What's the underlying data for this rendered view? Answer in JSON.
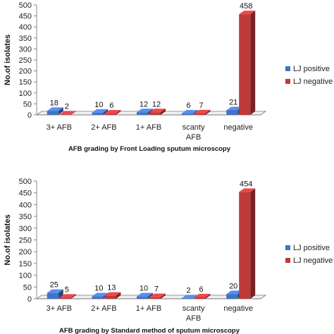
{
  "chart_data": [
    {
      "type": "bar",
      "title": "AFB grading by Front Loading sputum microscopy",
      "ylabel": "No.of isolates",
      "xlabel": "",
      "ylim": [
        0,
        500
      ],
      "yticks": [
        0,
        50,
        100,
        150,
        200,
        250,
        300,
        350,
        400,
        450,
        500
      ],
      "categories": [
        "3+ AFB",
        "2+ AFB",
        "1+ AFB",
        "scanty AFB",
        "negative"
      ],
      "series": [
        {
          "name": "LJ positive",
          "values": [
            18,
            10,
            12,
            6,
            21
          ],
          "color": "#4472c4"
        },
        {
          "name": "LJ negative",
          "values": [
            2,
            6,
            12,
            7,
            458
          ],
          "color": "#c0393b"
        }
      ],
      "legend_position": "right",
      "grid": false
    },
    {
      "type": "bar",
      "title": "AFB grading by Standard method of sputum microscopy",
      "ylabel": "No.of isolates",
      "xlabel": "",
      "ylim": [
        0,
        500
      ],
      "yticks": [
        0,
        50,
        100,
        150,
        200,
        250,
        300,
        350,
        400,
        450,
        500
      ],
      "categories": [
        "3+ AFB",
        "2+ AFB",
        "1+ AFB",
        "scanty AFB",
        "negative"
      ],
      "series": [
        {
          "name": "LJ positive",
          "values": [
            25,
            10,
            10,
            2,
            20
          ],
          "color": "#4472c4"
        },
        {
          "name": "LJ negative",
          "values": [
            5,
            13,
            7,
            6,
            454
          ],
          "color": "#c0393b"
        }
      ],
      "legend_position": "right",
      "grid": false
    }
  ]
}
